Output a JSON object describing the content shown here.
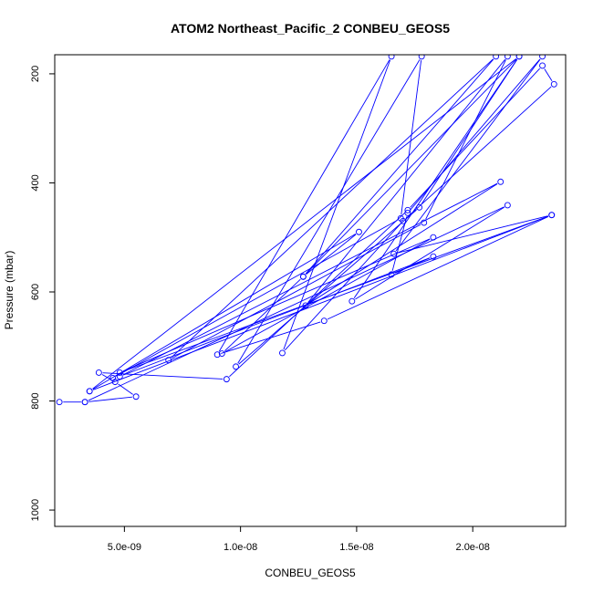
{
  "chart_data": {
    "type": "line",
    "title": "ATOM2 Northeast_Pacific_2 CONBEU_GEOS5",
    "xlabel": "CONBEU_GEOS5",
    "ylabel": "Pressure (mbar)",
    "xlim": [
      2e-09,
      2.4e-08
    ],
    "ylim": [
      1030,
      165
    ],
    "y_inverted": true,
    "x_ticks": [
      5e-09,
      1e-08,
      1.5e-08,
      2e-08
    ],
    "x_tick_labels": [
      "5.0e-09",
      "1.0e-08",
      "1.5e-08",
      "2.0e-08"
    ],
    "y_ticks": [
      200,
      400,
      600,
      800,
      1000
    ],
    "y_tick_labels": [
      "200",
      "400",
      "600",
      "800",
      "1000"
    ],
    "grid": false,
    "legend": "none",
    "line_color": "#0000ff",
    "marker": "open-circle",
    "series": [
      {
        "points": [
          [
            2.2e-09,
            802
          ],
          [
            3.3e-09,
            802
          ],
          [
            5.5e-09,
            792
          ],
          [
            4.6e-09,
            765
          ],
          [
            3.9e-09,
            748
          ],
          [
            9.4e-09,
            760
          ],
          [
            1.72e-08,
            450
          ],
          [
            2.3e-08,
            185
          ],
          [
            2.35e-08,
            219
          ],
          [
            1.7e-08,
            470
          ],
          [
            1.18e-08,
            712
          ],
          [
            1.65e-08,
            168
          ],
          [
            9e-09,
            715
          ],
          [
            1.36e-08,
            653
          ],
          [
            2.34e-08,
            459
          ],
          [
            4.8e-09,
            748
          ],
          [
            1.83e-08,
            500
          ],
          [
            9.2e-09,
            713
          ],
          [
            1.27e-08,
            572
          ],
          [
            1.51e-08,
            490
          ],
          [
            3.5e-09,
            782
          ],
          [
            2.2e-08,
            168
          ],
          [
            1.48e-08,
            617
          ],
          [
            2.15e-08,
            441
          ],
          [
            3.3e-09,
            802
          ]
        ]
      },
      {
        "points": [
          [
            4.5e-09,
            758
          ],
          [
            1.69e-08,
            465
          ],
          [
            1.78e-08,
            168
          ],
          [
            9.8e-09,
            737
          ],
          [
            1.77e-08,
            445
          ],
          [
            2.2e-08,
            168
          ],
          [
            1.27e-08,
            572
          ],
          [
            2.1e-08,
            168
          ],
          [
            6.9e-09,
            725
          ],
          [
            1.79e-08,
            473
          ],
          [
            2.15e-08,
            168
          ],
          [
            1.28e-08,
            625
          ],
          [
            2.12e-08,
            398
          ],
          [
            4.8e-09,
            755
          ],
          [
            1.83e-08,
            535
          ],
          [
            1.65e-08,
            568
          ],
          [
            1.72e-08,
            455
          ],
          [
            2.3e-08,
            168
          ],
          [
            1.66e-08,
            530
          ],
          [
            2.34e-08,
            459
          ],
          [
            3.5e-09,
            782
          ]
        ]
      }
    ]
  }
}
